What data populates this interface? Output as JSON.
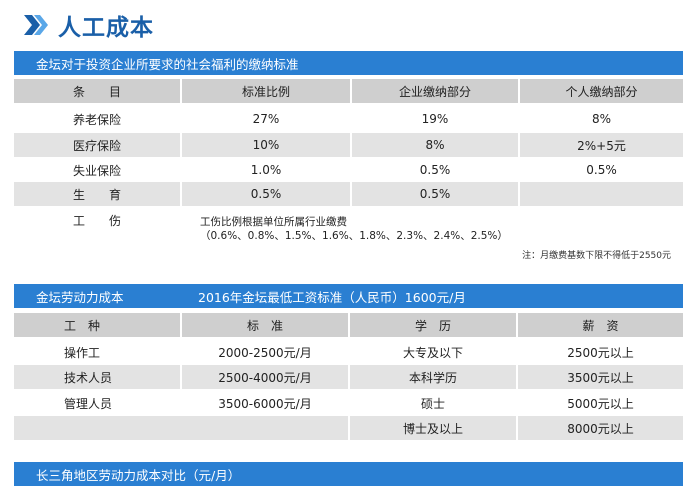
{
  "title": "人工成本",
  "section1": {
    "band_label": "金坛对于投资企业所要求的社会福利的缴纳标准",
    "headers": [
      "条　　目",
      "标准比例",
      "企业缴纳部分",
      "个人缴纳部分"
    ],
    "rows": [
      {
        "item": "养老保险",
        "ratio": "27%",
        "company": "19%",
        "personal": "8%"
      },
      {
        "item": "医疗保险",
        "ratio": "10%",
        "company": "8%",
        "personal": "2%+5元"
      },
      {
        "item": "失业保险",
        "ratio": "1.0%",
        "company": "0.5%",
        "personal": "0.5%"
      },
      {
        "item": "生　　育",
        "ratio": "0.5%",
        "company": "0.5%",
        "personal": ""
      }
    ],
    "injury_item": "工　　伤",
    "injury_line1": "工伤比例根据单位所属行业缴费",
    "injury_line2": "（0.6%、0.8%、1.5%、1.6%、1.8%、2.3%、2.4%、2.5%）",
    "note": "注：月缴费基数下限不得低于2550元"
  },
  "section2": {
    "band_label": "金坛劳动力成本",
    "band_sub": "2016年金坛最低工资标准（人民币）1600元/月",
    "headers": [
      "工　种",
      "标　准",
      "学　历",
      "薪　资"
    ],
    "left_rows": [
      {
        "type": "操作工",
        "standard": "2000-2500元/月"
      },
      {
        "type": "技术人员",
        "standard": "2500-4000元/月"
      },
      {
        "type": "管理人员",
        "standard": "3500-6000元/月"
      }
    ],
    "right_rows": [
      {
        "edu": "大专及以下",
        "salary": "2500元以上"
      },
      {
        "edu": "本科学历",
        "salary": "3500元以上"
      },
      {
        "edu": "硕士",
        "salary": "5000元以上"
      },
      {
        "edu": "博士及以上",
        "salary": "8000元以上"
      }
    ]
  },
  "section3": {
    "band_label": "长三角地区劳动力成本对比（元/月）"
  },
  "colors": {
    "accent": "#2a7fd2",
    "title": "#1a5fa8",
    "header": "#cfcfcf",
    "shade": "#e3e3e3"
  }
}
